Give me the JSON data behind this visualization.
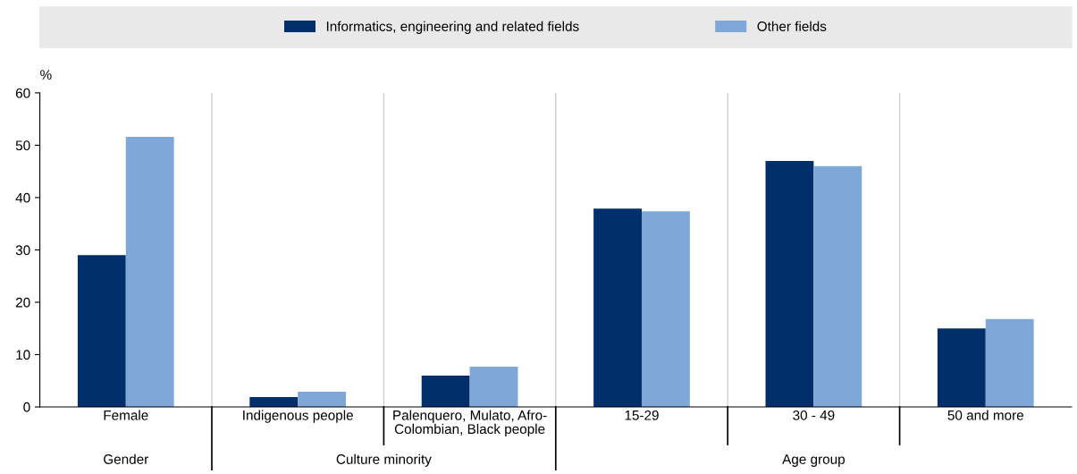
{
  "chart_data": {
    "type": "bar",
    "ylabel": "%",
    "categories": [
      "Female",
      "Indigenous people",
      "Palenquero, Mulato, Afro-\nColombian, Black people",
      "15-29",
      "30 - 49",
      "50 and more"
    ],
    "series": [
      {
        "name": "Informatics, engineering and related fields",
        "color": "#002f6c",
        "values": [
          29,
          1.9,
          6,
          37.9,
          47,
          15
        ]
      },
      {
        "name": "Other fields",
        "color": "#7fa8d8",
        "values": [
          51.6,
          2.9,
          7.7,
          37.4,
          46,
          16.8
        ]
      }
    ],
    "ylim": [
      0,
      60
    ],
    "yticks": [
      0,
      10,
      20,
      30,
      40,
      50,
      60
    ],
    "annotations": [
      "Gender",
      "Culture minority",
      "Age group"
    ],
    "legend": "top",
    "grid": false
  }
}
